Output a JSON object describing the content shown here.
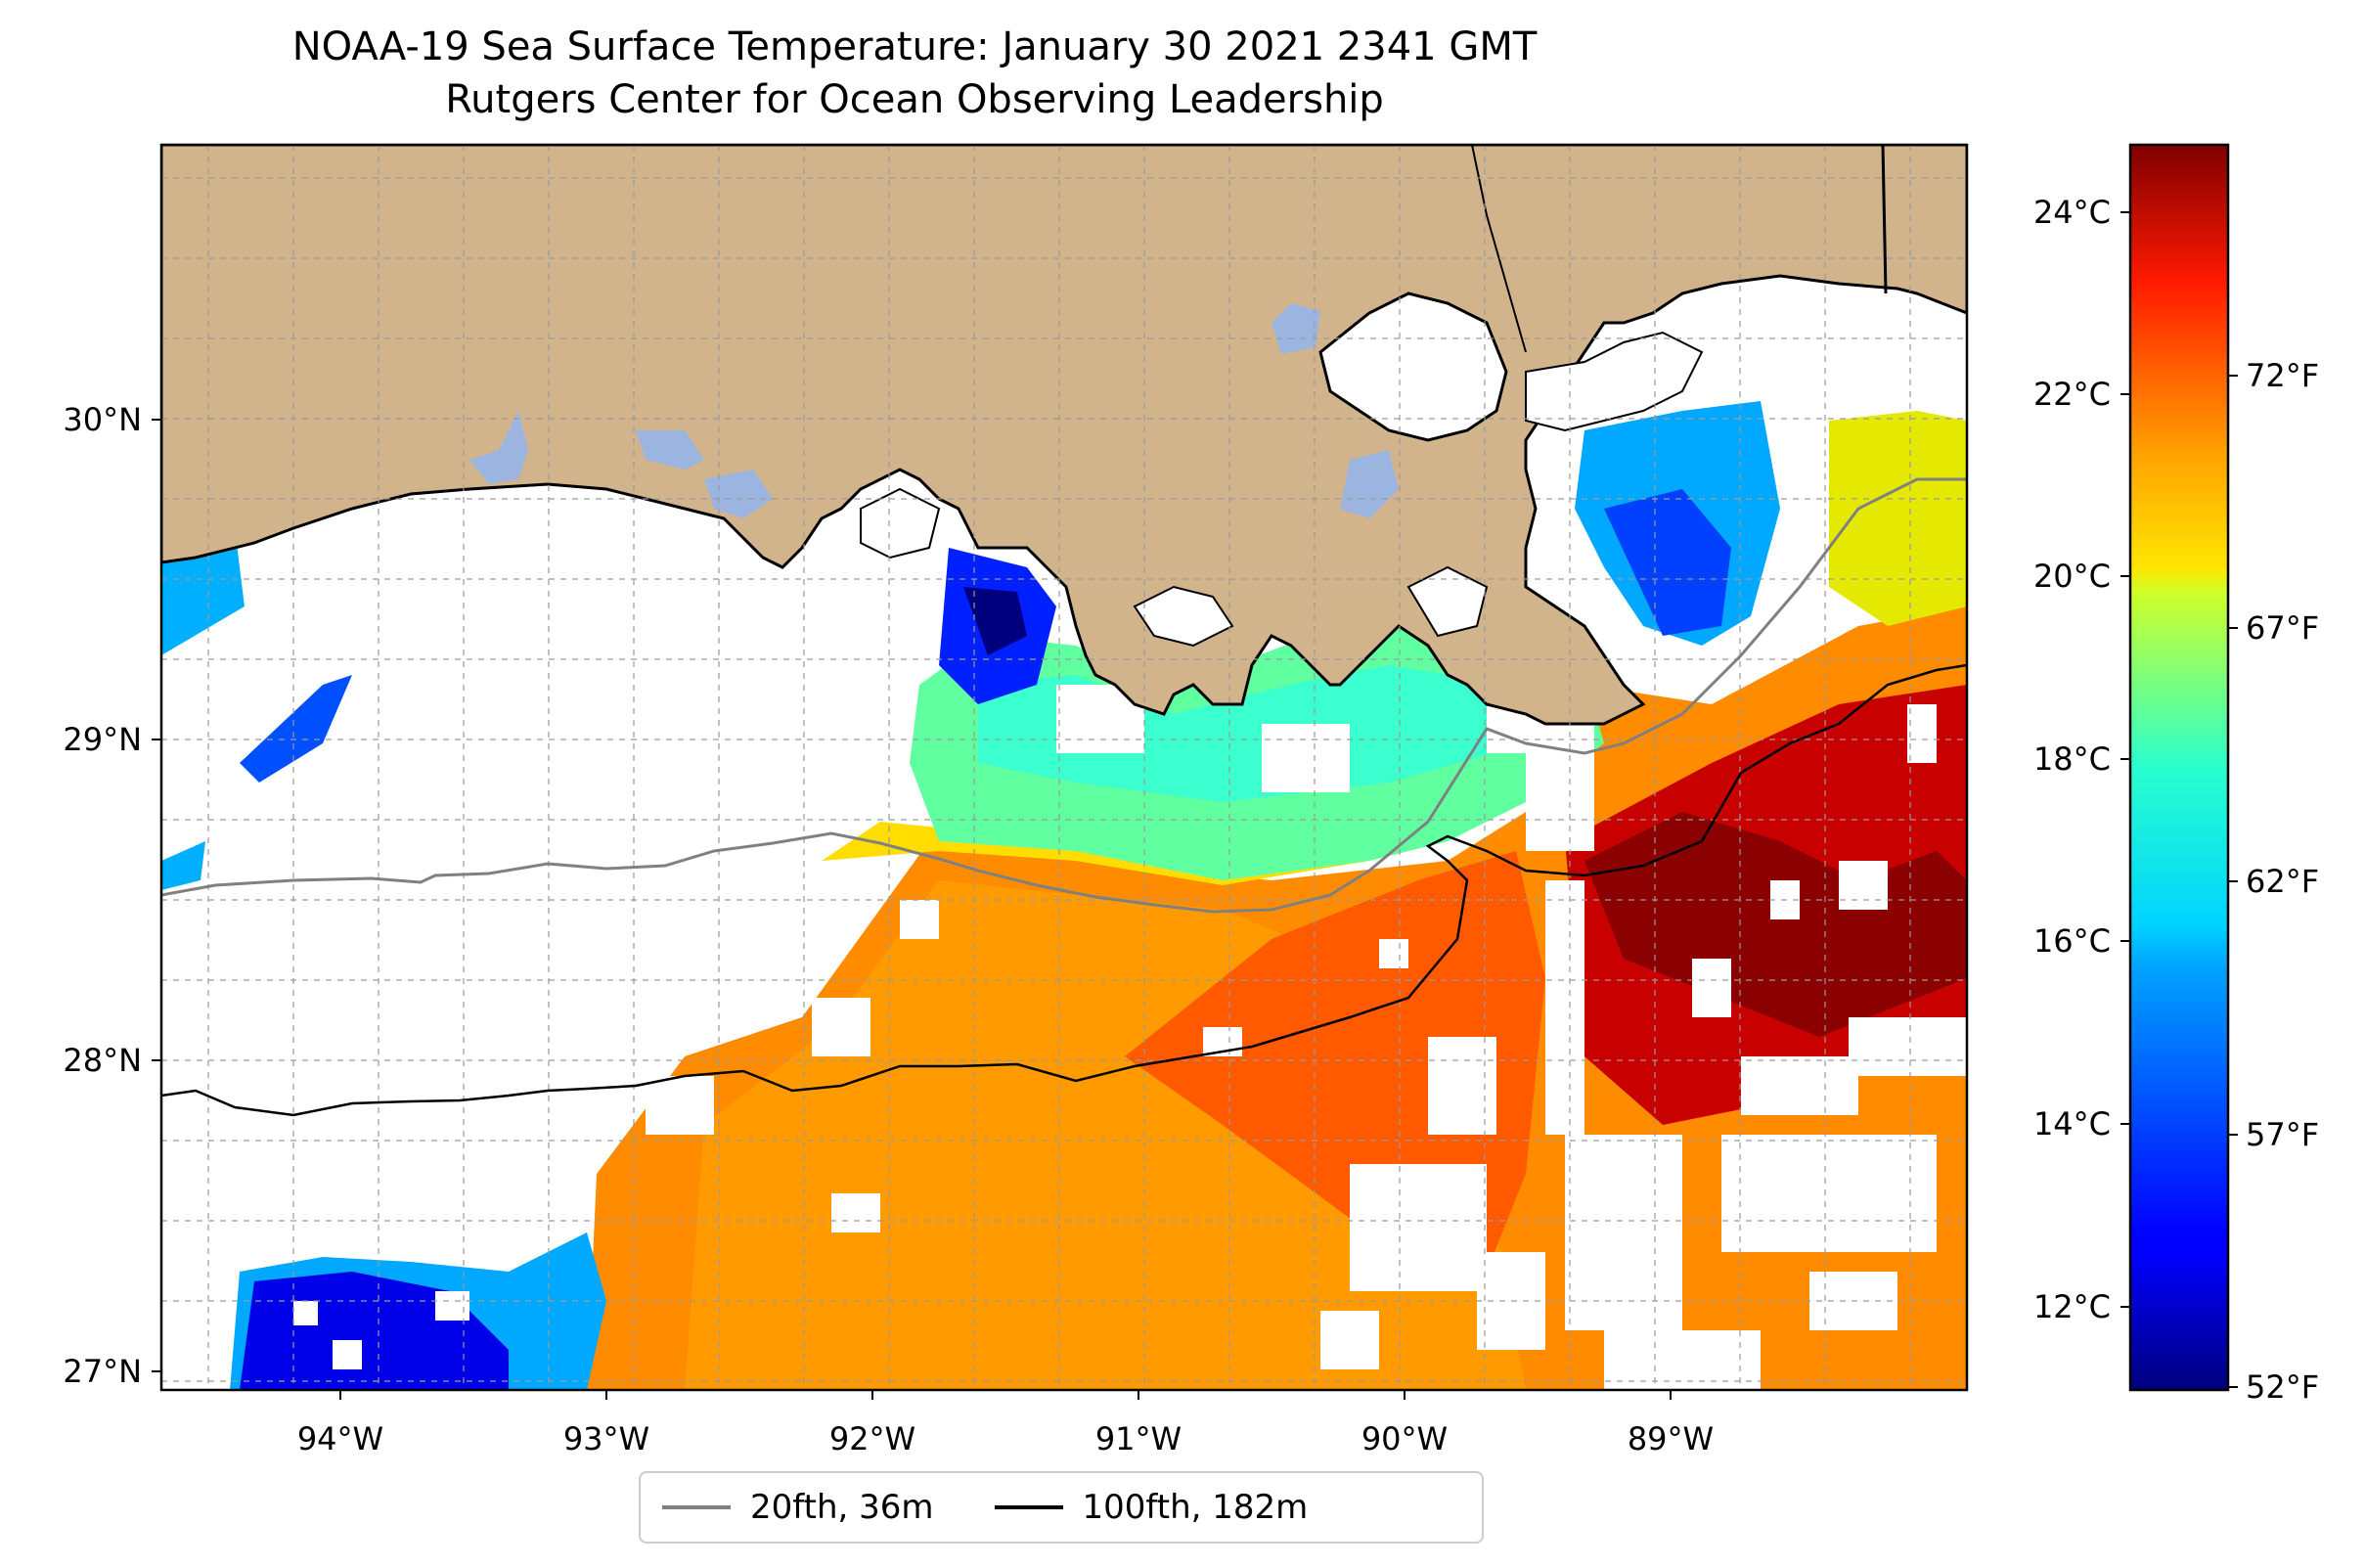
{
  "title": {
    "line1": "NOAA-19 Sea Surface Temperature: January 30 2021 2341 GMT",
    "line2": "Rutgers Center for Ocean Observing Leadership"
  },
  "map": {
    "lon_ticks": [
      "94°W",
      "93°W",
      "92°W",
      "91°W",
      "90°W",
      "89°W"
    ],
    "lat_ticks": [
      "30°N",
      "29°N",
      "28°N",
      "27°N"
    ],
    "land_color": "#d2b48c",
    "lake_color": "#9bb5e0",
    "cloud_color": "#ffffff"
  },
  "colorbar": {
    "celsius_ticks": [
      "24°C",
      "22°C",
      "20°C",
      "18°C",
      "16°C",
      "14°C",
      "12°C"
    ],
    "fahrenheit_ticks": [
      "72°F",
      "67°F",
      "62°F",
      "57°F",
      "52°F"
    ],
    "colormap": "jet"
  },
  "legend": {
    "items": [
      {
        "label": "20fth, 36m",
        "color": "#808080"
      },
      {
        "label": "100fth, 182m",
        "color": "#000000"
      }
    ]
  }
}
